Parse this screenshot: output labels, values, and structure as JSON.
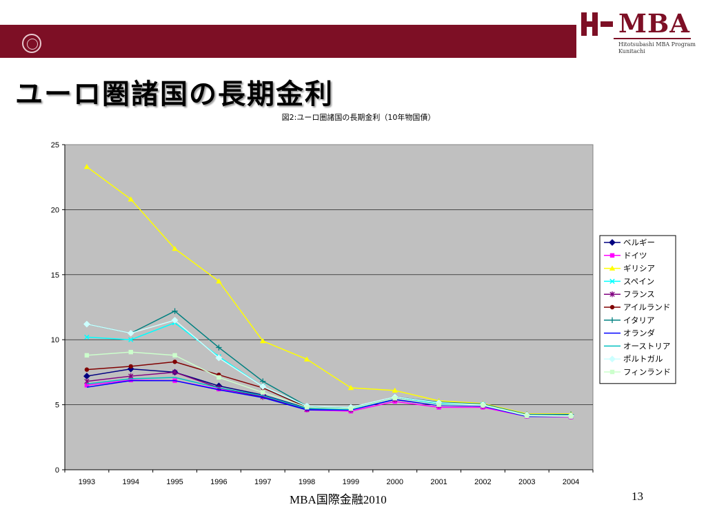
{
  "header": {
    "logo_text": "MBA",
    "logo_sub_line1": "Hitotsubashi MBA Program",
    "logo_sub_line2": "Kunitachi"
  },
  "slide": {
    "title": "ユーロ圏諸国の長期金利",
    "footer_center": "MBA国際金融2010",
    "page_number": "13"
  },
  "colors": {
    "brand": "#7d0f25",
    "plot_background": "#c0c0c0"
  },
  "chart_data": {
    "type": "line",
    "title": "図2:ユーロ圏諸国の長期金利（10年物国債）",
    "xlabel": "",
    "ylabel": "",
    "ylim": [
      0,
      25
    ],
    "yticks": [
      0,
      5,
      10,
      15,
      20,
      25
    ],
    "categories": [
      "1993",
      "1994",
      "1995",
      "1996",
      "1997",
      "1998",
      "1999",
      "2000",
      "2001",
      "2002",
      "2003",
      "2004"
    ],
    "grid": "horizontal",
    "legend_position": "right",
    "series": [
      {
        "name": "ベルギー",
        "color": "#000080",
        "marker": "diamond",
        "values": [
          7.2,
          7.75,
          7.5,
          6.45,
          5.75,
          4.75,
          4.75,
          5.6,
          5.1,
          4.95,
          4.2,
          4.15
        ]
      },
      {
        "name": "ドイツ",
        "color": "#ff00ff",
        "marker": "square",
        "values": [
          6.5,
          6.9,
          6.85,
          6.2,
          5.65,
          4.6,
          4.5,
          5.25,
          4.8,
          4.8,
          4.1,
          4.05
        ]
      },
      {
        "name": "ギリシア",
        "color": "#ffff00",
        "marker": "triangle",
        "values": [
          23.3,
          20.8,
          17.0,
          14.5,
          9.9,
          8.5,
          6.3,
          6.1,
          5.3,
          5.1,
          4.3,
          4.3
        ]
      },
      {
        "name": "スペイン",
        "color": "#00ffff",
        "marker": "x",
        "values": [
          10.2,
          10.0,
          11.3,
          8.7,
          6.4,
          4.85,
          4.75,
          5.5,
          5.1,
          5.0,
          4.15,
          4.1
        ]
      },
      {
        "name": "フランス",
        "color": "#800080",
        "marker": "star",
        "values": [
          6.8,
          7.2,
          7.5,
          6.3,
          5.6,
          4.65,
          4.6,
          5.4,
          4.95,
          4.9,
          4.15,
          4.1
        ]
      },
      {
        "name": "アイルランド",
        "color": "#800000",
        "marker": "circle",
        "values": [
          7.7,
          7.95,
          8.3,
          7.3,
          6.3,
          4.8,
          4.7,
          5.5,
          5.0,
          5.0,
          4.15,
          4.1
        ]
      },
      {
        "name": "イタリア",
        "color": "#008080",
        "marker": "plus",
        "values": [
          11.2,
          10.5,
          12.2,
          9.4,
          6.8,
          4.9,
          4.7,
          5.6,
          5.2,
          5.05,
          4.25,
          4.25
        ]
      },
      {
        "name": "オランダ",
        "color": "#0000ff",
        "marker": "none",
        "values": [
          6.35,
          6.85,
          6.85,
          6.15,
          5.55,
          4.6,
          4.6,
          5.4,
          4.95,
          4.9,
          4.1,
          4.1
        ]
      },
      {
        "name": "オーストリア",
        "color": "#00c0c0",
        "marker": "none",
        "values": [
          6.6,
          7.0,
          7.1,
          6.3,
          5.7,
          4.7,
          4.65,
          5.5,
          5.05,
          4.95,
          4.15,
          4.15
        ]
      },
      {
        "name": "ポルトガル",
        "color": "#ccffff",
        "marker": "diamond",
        "values": [
          11.2,
          10.5,
          11.5,
          8.6,
          6.4,
          4.9,
          4.8,
          5.6,
          5.15,
          5.0,
          4.2,
          4.15
        ]
      },
      {
        "name": "フィンランド",
        "color": "#ccffcc",
        "marker": "square",
        "values": [
          8.8,
          9.05,
          8.8,
          7.1,
          5.95,
          4.8,
          4.7,
          5.5,
          5.0,
          4.95,
          4.15,
          4.1
        ]
      }
    ]
  }
}
